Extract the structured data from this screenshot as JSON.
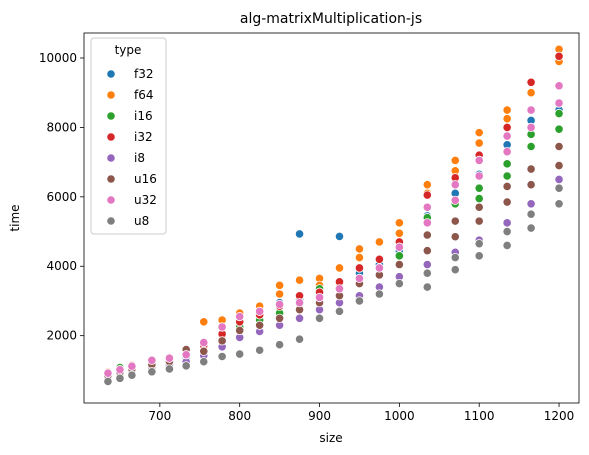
{
  "chart_data": {
    "type": "scatter",
    "title": "alg-matrixMultiplication-js",
    "xlabel": "size",
    "ylabel": "time",
    "xlim": [
      605,
      1225
    ],
    "ylim": [
      60,
      10720
    ],
    "xticks": [
      700,
      800,
      900,
      1000,
      1100,
      1200
    ],
    "yticks": [
      2000,
      4000,
      6000,
      8000,
      10000
    ],
    "grid": false,
    "legend": {
      "title": "type",
      "placement": "top-left"
    },
    "sizes": [
      635,
      650,
      665,
      690,
      712,
      733,
      755,
      778,
      800,
      825,
      850,
      875,
      900,
      925,
      950,
      975,
      1000,
      1035,
      1070,
      1100,
      1135,
      1165,
      1200
    ],
    "series": [
      {
        "name": "f32",
        "color": "#1f77b4",
        "points": [
          [
            635,
            900
          ],
          [
            650,
            1000
          ],
          [
            665,
            1090
          ],
          [
            690,
            1210
          ],
          [
            712,
            1300
          ],
          [
            733,
            1400
          ],
          [
            755,
            1640
          ],
          [
            778,
            1960
          ],
          [
            800,
            2320
          ],
          [
            825,
            2520
          ],
          [
            850,
            2950
          ],
          [
            875,
            3050
          ],
          [
            900,
            3150
          ],
          [
            925,
            3450
          ],
          [
            950,
            3800
          ],
          [
            975,
            4050
          ],
          [
            1000,
            4450
          ],
          [
            1035,
            5450
          ],
          [
            1070,
            6100
          ],
          [
            1100,
            6650
          ],
          [
            1135,
            7500
          ],
          [
            1165,
            8200
          ],
          [
            1200,
            8500
          ],
          [
            875,
            4930
          ],
          [
            925,
            4860
          ]
        ]
      },
      {
        "name": "f64",
        "color": "#ff7f0e",
        "points": [
          [
            635,
            950
          ],
          [
            650,
            1050
          ],
          [
            665,
            1150
          ],
          [
            690,
            1280
          ],
          [
            712,
            1370
          ],
          [
            733,
            1500
          ],
          [
            755,
            2400
          ],
          [
            778,
            2450
          ],
          [
            800,
            2650
          ],
          [
            825,
            2850
          ],
          [
            850,
            3450
          ],
          [
            875,
            3600
          ],
          [
            900,
            3650
          ],
          [
            925,
            3950
          ],
          [
            950,
            4500
          ],
          [
            975,
            4700
          ],
          [
            1000,
            5250
          ],
          [
            1035,
            6350
          ],
          [
            1070,
            7050
          ],
          [
            1100,
            7850
          ],
          [
            1135,
            8500
          ],
          [
            1165,
            9300
          ],
          [
            1200,
            10250
          ],
          [
            800,
            2520
          ],
          [
            850,
            3200
          ],
          [
            900,
            3450
          ],
          [
            950,
            4250
          ],
          [
            1000,
            4950
          ],
          [
            1035,
            6100
          ],
          [
            1070,
            6750
          ],
          [
            1100,
            7550
          ],
          [
            1135,
            8250
          ],
          [
            1165,
            9000
          ],
          [
            1200,
            9900
          ]
        ]
      },
      {
        "name": "i16",
        "color": "#2ca02c",
        "points": [
          [
            635,
            880
          ],
          [
            650,
            1080
          ],
          [
            665,
            1050
          ],
          [
            690,
            1190
          ],
          [
            712,
            1280
          ],
          [
            733,
            1380
          ],
          [
            755,
            1600
          ],
          [
            778,
            1900
          ],
          [
            800,
            2250
          ],
          [
            825,
            2450
          ],
          [
            850,
            2650
          ],
          [
            875,
            2900
          ],
          [
            900,
            3350
          ],
          [
            925,
            3400
          ],
          [
            950,
            3550
          ],
          [
            975,
            3750
          ],
          [
            1000,
            4300
          ],
          [
            1035,
            5400
          ],
          [
            1070,
            5800
          ],
          [
            1100,
            6250
          ],
          [
            1135,
            6950
          ],
          [
            1165,
            7800
          ],
          [
            1200,
            8400
          ],
          [
            1100,
            5950
          ],
          [
            1135,
            6600
          ],
          [
            1165,
            7450
          ],
          [
            1200,
            7950
          ]
        ]
      },
      {
        "name": "i32",
        "color": "#d62728",
        "points": [
          [
            635,
            920
          ],
          [
            650,
            1020
          ],
          [
            665,
            1120
          ],
          [
            690,
            1250
          ],
          [
            712,
            1340
          ],
          [
            733,
            1460
          ],
          [
            755,
            1720
          ],
          [
            778,
            2050
          ],
          [
            800,
            2400
          ],
          [
            825,
            2600
          ],
          [
            850,
            2850
          ],
          [
            875,
            3150
          ],
          [
            900,
            3250
          ],
          [
            925,
            3550
          ],
          [
            950,
            3950
          ],
          [
            975,
            4200
          ],
          [
            1000,
            4700
          ],
          [
            1035,
            6050
          ],
          [
            1070,
            6550
          ],
          [
            1100,
            7200
          ],
          [
            1135,
            8000
          ],
          [
            1165,
            9300
          ],
          [
            1200,
            10050
          ]
        ]
      },
      {
        "name": "i8",
        "color": "#9467bd",
        "points": [
          [
            635,
            780
          ],
          [
            650,
            880
          ],
          [
            665,
            960
          ],
          [
            690,
            1080
          ],
          [
            712,
            1160
          ],
          [
            733,
            1250
          ],
          [
            755,
            1420
          ],
          [
            778,
            1680
          ],
          [
            800,
            1950
          ],
          [
            825,
            2120
          ],
          [
            850,
            2300
          ],
          [
            875,
            2500
          ],
          [
            900,
            2750
          ],
          [
            925,
            2950
          ],
          [
            950,
            3150
          ],
          [
            975,
            3400
          ],
          [
            1000,
            3700
          ],
          [
            1035,
            4050
          ],
          [
            1070,
            4400
          ],
          [
            1100,
            4750
          ],
          [
            1135,
            5250
          ],
          [
            1165,
            5800
          ],
          [
            1200,
            6500
          ]
        ]
      },
      {
        "name": "u16",
        "color": "#8c564b",
        "points": [
          [
            635,
            850
          ],
          [
            650,
            950
          ],
          [
            665,
            1040
          ],
          [
            690,
            1170
          ],
          [
            712,
            1250
          ],
          [
            733,
            1600
          ],
          [
            755,
            1550
          ],
          [
            778,
            1850
          ],
          [
            800,
            2150
          ],
          [
            825,
            2300
          ],
          [
            850,
            2500
          ],
          [
            875,
            2750
          ],
          [
            900,
            2950
          ],
          [
            925,
            3150
          ],
          [
            950,
            3500
          ],
          [
            975,
            3750
          ],
          [
            1000,
            4050
          ],
          [
            1035,
            4900
          ],
          [
            1070,
            5300
          ],
          [
            1100,
            5700
          ],
          [
            1135,
            6300
          ],
          [
            1165,
            6800
          ],
          [
            1200,
            7450
          ],
          [
            1035,
            4450
          ],
          [
            1070,
            4850
          ],
          [
            1100,
            5300
          ],
          [
            1135,
            5850
          ],
          [
            1165,
            6350
          ],
          [
            1200,
            6900
          ]
        ]
      },
      {
        "name": "u32",
        "color": "#e377c2",
        "points": [
          [
            635,
            920
          ],
          [
            650,
            1020
          ],
          [
            665,
            1120
          ],
          [
            690,
            1290
          ],
          [
            712,
            1350
          ],
          [
            733,
            1450
          ],
          [
            755,
            1800
          ],
          [
            778,
            2250
          ],
          [
            800,
            2550
          ],
          [
            825,
            2700
          ],
          [
            850,
            2900
          ],
          [
            875,
            2950
          ],
          [
            900,
            3100
          ],
          [
            925,
            3350
          ],
          [
            950,
            3650
          ],
          [
            975,
            3950
          ],
          [
            1000,
            4550
          ],
          [
            1035,
            5700
          ],
          [
            1070,
            6350
          ],
          [
            1100,
            7050
          ],
          [
            1135,
            7750
          ],
          [
            1165,
            8500
          ],
          [
            1200,
            9200
          ],
          [
            1035,
            5250
          ],
          [
            1070,
            5900
          ],
          [
            1100,
            6600
          ],
          [
            1135,
            7300
          ],
          [
            1165,
            8000
          ],
          [
            1200,
            8700
          ]
        ]
      },
      {
        "name": "u8",
        "color": "#7f7f7f",
        "points": [
          [
            635,
            680
          ],
          [
            650,
            770
          ],
          [
            665,
            860
          ],
          [
            690,
            960
          ],
          [
            712,
            1040
          ],
          [
            733,
            1130
          ],
          [
            755,
            1250
          ],
          [
            778,
            1400
          ],
          [
            800,
            1470
          ],
          [
            825,
            1580
          ],
          [
            850,
            1740
          ],
          [
            875,
            1900
          ],
          [
            900,
            2500
          ],
          [
            925,
            2700
          ],
          [
            950,
            3000
          ],
          [
            975,
            3200
          ],
          [
            1000,
            3500
          ],
          [
            1035,
            3400
          ],
          [
            1070,
            3900
          ],
          [
            1100,
            4300
          ],
          [
            1135,
            4600
          ],
          [
            1165,
            5100
          ],
          [
            1200,
            5800
          ],
          [
            1035,
            3800
          ],
          [
            1070,
            4250
          ],
          [
            1100,
            4650
          ],
          [
            1135,
            5000
          ],
          [
            1165,
            5500
          ],
          [
            1200,
            6250
          ]
        ]
      }
    ]
  }
}
